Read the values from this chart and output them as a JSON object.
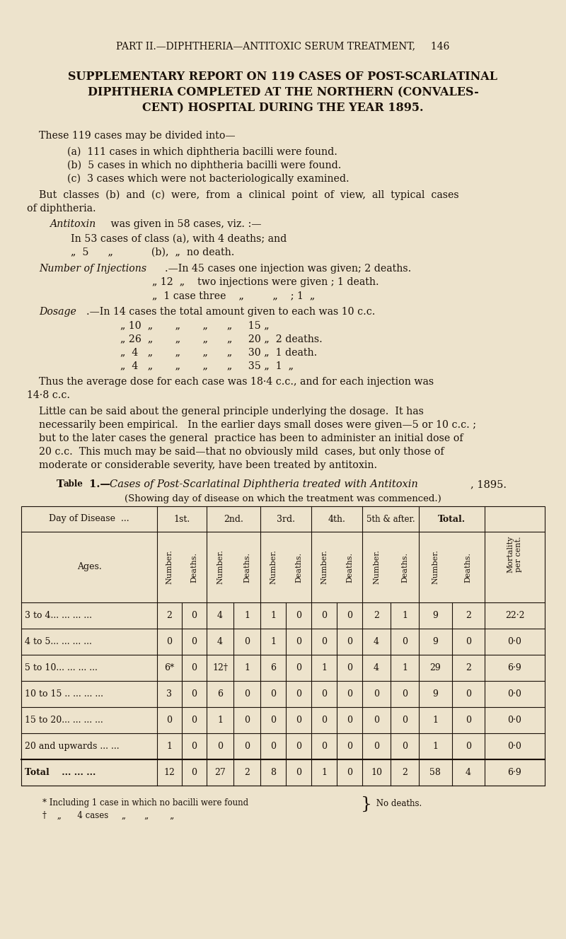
{
  "bg_color": "#ede3cc",
  "text_color": "#1a1008",
  "header": "PART II.—DIPHTHERIA—ANTITOXIC SERUM TREATMENT,     146",
  "title_lines": [
    "SUPPLEMENTARY REPORT ON 119 CASES OF POST-SCARLATINAL",
    "DIPHTHERIA COMPLETED AT THE NORTHERN (CONVALES-",
    "CENT) HOSPITAL DURING THE YEAR 1895."
  ],
  "table_data": {
    "age_groups": [
      "3 to 4... ... ... ...",
      "4 to 5... ... ... ...",
      "5 to 10... ... ... ...",
      "10 to 15 .. ... ... ...",
      "15 to 20... ... ... ...",
      "20 and upwards ... ...",
      "Total    ... ... ..."
    ],
    "col1_num": [
      "2",
      "0",
      "6*",
      "3",
      "0",
      "1",
      "12"
    ],
    "col1_dth": [
      "0",
      "0",
      "0",
      "0",
      "0",
      "0",
      "0"
    ],
    "col2_num": [
      "4",
      "4",
      "12†",
      "6",
      "1",
      "0",
      "27"
    ],
    "col2_dth": [
      "1",
      "0",
      "1",
      "0",
      "0",
      "0",
      "2"
    ],
    "col3_num": [
      "1",
      "1",
      "6",
      "0",
      "0",
      "0",
      "8"
    ],
    "col3_dth": [
      "0",
      "0",
      "0",
      "0",
      "0",
      "0",
      "0"
    ],
    "col4_num": [
      "0",
      "0",
      "1",
      "0",
      "0",
      "0",
      "1"
    ],
    "col4_dth": [
      "0",
      "0",
      "0",
      "0",
      "0",
      "0",
      "0"
    ],
    "col5_num": [
      "2",
      "4",
      "4",
      "0",
      "0",
      "0",
      "10"
    ],
    "col5_dth": [
      "1",
      "0",
      "1",
      "0",
      "0",
      "0",
      "2"
    ],
    "total_num": [
      "9",
      "9",
      "29",
      "9",
      "1",
      "1",
      "58"
    ],
    "total_dth": [
      "2",
      "0",
      "2",
      "0",
      "0",
      "0",
      "4"
    ],
    "mortality": [
      "22·2",
      "0·0",
      "6·9",
      "0·0",
      "0·0",
      "0·0",
      "6·9"
    ]
  }
}
